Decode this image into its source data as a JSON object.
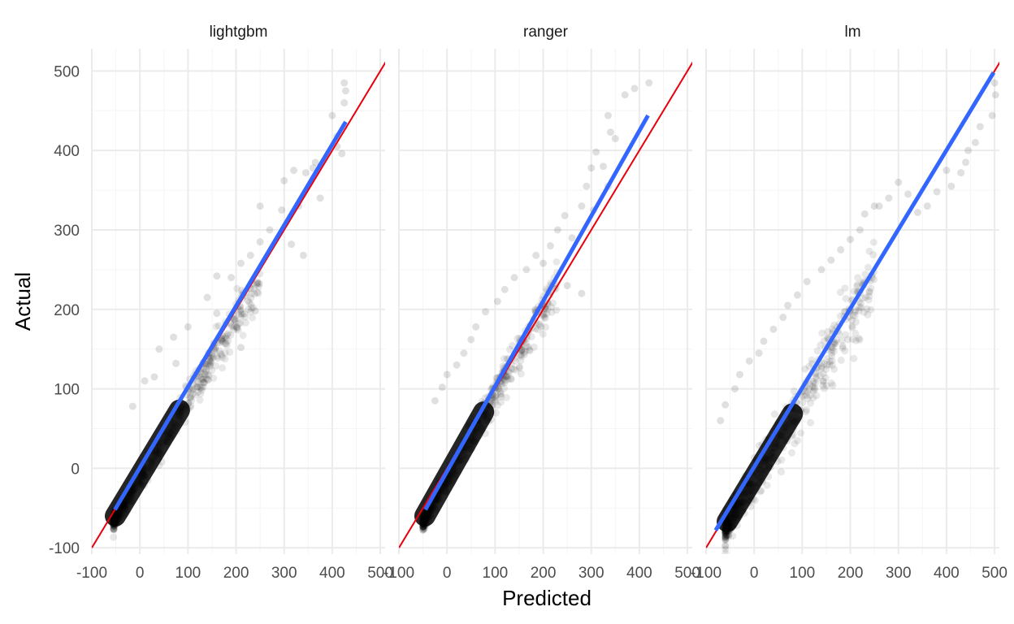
{
  "chart_data": {
    "type": "scatter",
    "xlabel": "Predicted",
    "ylabel": "Actual",
    "xlim": [
      -100,
      510
    ],
    "ylim": [
      -108,
      528
    ],
    "x_ticks": [
      -100,
      0,
      100,
      200,
      300,
      400,
      500
    ],
    "y_ticks": [
      -100,
      0,
      100,
      200,
      300,
      400,
      500
    ],
    "x_tick_labels": [
      "-100",
      "0",
      "100",
      "200",
      "300",
      "400",
      "500"
    ],
    "y_tick_labels": [
      "-100",
      "0",
      "100",
      "200",
      "300",
      "400",
      "500"
    ],
    "grid": true,
    "legend": "none",
    "colors": {
      "points": "#000000",
      "identity_line": "#e8000b",
      "fit_line": "#3366ff",
      "grid_major": "#ebebeb",
      "grid_minor": "#f5f5f5"
    },
    "reference_line": {
      "description": "y = x",
      "slope": 1,
      "intercept": 0
    },
    "panels": [
      {
        "name": "lightgbm",
        "fit_line": {
          "x": [
            -52,
            428
          ],
          "y": [
            -52,
            436
          ]
        },
        "cloud": {
          "x_range": [
            -55,
            250
          ],
          "y_range": [
            -68,
            260
          ],
          "slope": 1.0,
          "spread": 9
        },
        "outliers": [
          {
            "x": 425,
            "y": 485
          },
          {
            "x": 428,
            "y": 475
          },
          {
            "x": 425,
            "y": 460
          },
          {
            "x": 400,
            "y": 444
          },
          {
            "x": 425,
            "y": 430
          },
          {
            "x": 410,
            "y": 418
          },
          {
            "x": 410,
            "y": 405
          },
          {
            "x": 420,
            "y": 396
          },
          {
            "x": 360,
            "y": 378
          },
          {
            "x": 365,
            "y": 385
          },
          {
            "x": 375,
            "y": 340
          },
          {
            "x": 345,
            "y": 372
          },
          {
            "x": 320,
            "y": 375
          },
          {
            "x": 300,
            "y": 362
          },
          {
            "x": 330,
            "y": 330
          },
          {
            "x": 295,
            "y": 325
          },
          {
            "x": 250,
            "y": 330
          },
          {
            "x": 270,
            "y": 300
          },
          {
            "x": 315,
            "y": 282
          },
          {
            "x": 340,
            "y": 268
          },
          {
            "x": 250,
            "y": 285
          },
          {
            "x": 230,
            "y": 268
          },
          {
            "x": 210,
            "y": 258
          },
          {
            "x": 160,
            "y": 242
          },
          {
            "x": 190,
            "y": 240
          },
          {
            "x": 140,
            "y": 215
          },
          {
            "x": 160,
            "y": 195
          },
          {
            "x": 100,
            "y": 178
          },
          {
            "x": 70,
            "y": 165
          },
          {
            "x": 40,
            "y": 150
          },
          {
            "x": 75,
            "y": 132
          },
          {
            "x": 30,
            "y": 115
          },
          {
            "x": 10,
            "y": 110
          },
          {
            "x": -15,
            "y": 78
          },
          {
            "x": 210,
            "y": 152
          },
          {
            "x": 240,
            "y": 198
          }
        ]
      },
      {
        "name": "ranger",
        "fit_line": {
          "x": [
            -45,
            418
          ],
          "y": [
            -52,
            444
          ]
        },
        "cloud": {
          "x_range": [
            -50,
            230
          ],
          "y_range": [
            -68,
            235
          ],
          "slope": 1.07,
          "spread": 9
        },
        "outliers": [
          {
            "x": 420,
            "y": 485
          },
          {
            "x": 390,
            "y": 478
          },
          {
            "x": 370,
            "y": 470
          },
          {
            "x": 335,
            "y": 444
          },
          {
            "x": 340,
            "y": 423
          },
          {
            "x": 350,
            "y": 415
          },
          {
            "x": 310,
            "y": 398
          },
          {
            "x": 325,
            "y": 380
          },
          {
            "x": 300,
            "y": 378
          },
          {
            "x": 335,
            "y": 355
          },
          {
            "x": 290,
            "y": 355
          },
          {
            "x": 280,
            "y": 330
          },
          {
            "x": 305,
            "y": 325
          },
          {
            "x": 245,
            "y": 318
          },
          {
            "x": 230,
            "y": 300
          },
          {
            "x": 260,
            "y": 290
          },
          {
            "x": 215,
            "y": 280
          },
          {
            "x": 185,
            "y": 268
          },
          {
            "x": 200,
            "y": 258
          },
          {
            "x": 165,
            "y": 250
          },
          {
            "x": 140,
            "y": 240
          },
          {
            "x": 120,
            "y": 225
          },
          {
            "x": 105,
            "y": 210
          },
          {
            "x": 80,
            "y": 197
          },
          {
            "x": 60,
            "y": 178
          },
          {
            "x": 50,
            "y": 162
          },
          {
            "x": 35,
            "y": 145
          },
          {
            "x": 20,
            "y": 130
          },
          {
            "x": 0,
            "y": 118
          },
          {
            "x": -10,
            "y": 102
          },
          {
            "x": -25,
            "y": 85
          },
          {
            "x": 250,
            "y": 230
          },
          {
            "x": 280,
            "y": 220
          }
        ]
      },
      {
        "name": "lm",
        "fit_line": {
          "x": [
            -80,
            498
          ],
          "y": [
            -78,
            498
          ]
        },
        "cloud": {
          "x_range": [
            -60,
            250
          ],
          "y_range": [
            -75,
            240
          ],
          "slope": 1.0,
          "spread": 16
        },
        "outliers": [
          {
            "x": 500,
            "y": 485
          },
          {
            "x": 502,
            "y": 470
          },
          {
            "x": 495,
            "y": 444
          },
          {
            "x": 470,
            "y": 430
          },
          {
            "x": 460,
            "y": 410
          },
          {
            "x": 445,
            "y": 400
          },
          {
            "x": 440,
            "y": 385
          },
          {
            "x": 430,
            "y": 372
          },
          {
            "x": 410,
            "y": 355
          },
          {
            "x": 400,
            "y": 375
          },
          {
            "x": 380,
            "y": 348
          },
          {
            "x": 360,
            "y": 330
          },
          {
            "x": 340,
            "y": 322
          },
          {
            "x": 320,
            "y": 345
          },
          {
            "x": 300,
            "y": 360
          },
          {
            "x": 280,
            "y": 340
          },
          {
            "x": 260,
            "y": 330
          },
          {
            "x": 230,
            "y": 320
          },
          {
            "x": 220,
            "y": 300
          },
          {
            "x": 200,
            "y": 288
          },
          {
            "x": 180,
            "y": 275
          },
          {
            "x": 160,
            "y": 262
          },
          {
            "x": 140,
            "y": 250
          },
          {
            "x": 110,
            "y": 235
          },
          {
            "x": 90,
            "y": 218
          },
          {
            "x": 70,
            "y": 205
          },
          {
            "x": 60,
            "y": 190
          },
          {
            "x": 40,
            "y": 175
          },
          {
            "x": 20,
            "y": 160
          },
          {
            "x": 10,
            "y": 145
          },
          {
            "x": -10,
            "y": 135
          },
          {
            "x": -30,
            "y": 118
          },
          {
            "x": -40,
            "y": 100
          },
          {
            "x": -60,
            "y": 80
          },
          {
            "x": -70,
            "y": 60
          },
          {
            "x": 250,
            "y": 330
          }
        ]
      }
    ]
  }
}
